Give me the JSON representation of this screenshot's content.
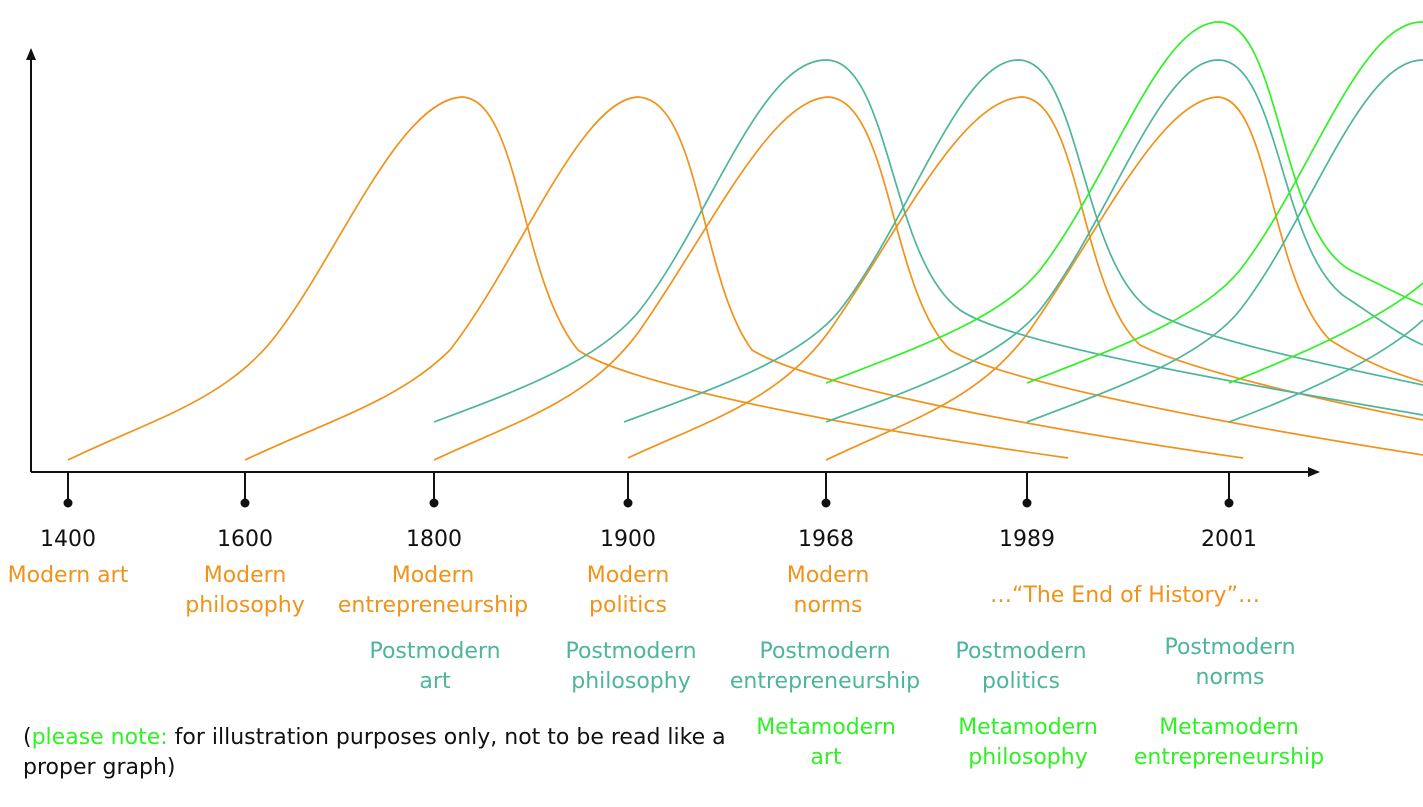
{
  "colors": {
    "modern": "#f0931b",
    "postmodern": "#4db59c",
    "metamodern": "#2ef224",
    "axis": "#111111"
  },
  "timeline": [
    {
      "year": "1400",
      "modern": "Modern art"
    },
    {
      "year": "1600",
      "modern": "Modern philosophy"
    },
    {
      "year": "1800",
      "modern": "Modern entrepreneurship",
      "postmodern": "Postmodern art"
    },
    {
      "year": "1900",
      "modern": "Modern politics",
      "postmodern": "Postmodern philosophy"
    },
    {
      "year": "1968",
      "modern": "Modern norms",
      "postmodern": "Postmodern entrepreneurship",
      "metamodern": "Metamodern art"
    },
    {
      "year": "1989",
      "postmodern": "Postmodern politics",
      "metamodern": "Metamodern philosophy"
    },
    {
      "year": "2001",
      "postmodern": "Postmodern norms",
      "metamodern": "Metamodern entrepreneurship"
    }
  ],
  "annotation": "…“The End of History”…",
  "note": {
    "highlight": "please note:",
    "text": " for illustration purposes only, not to be read like a proper graph)",
    "open": "("
  }
}
